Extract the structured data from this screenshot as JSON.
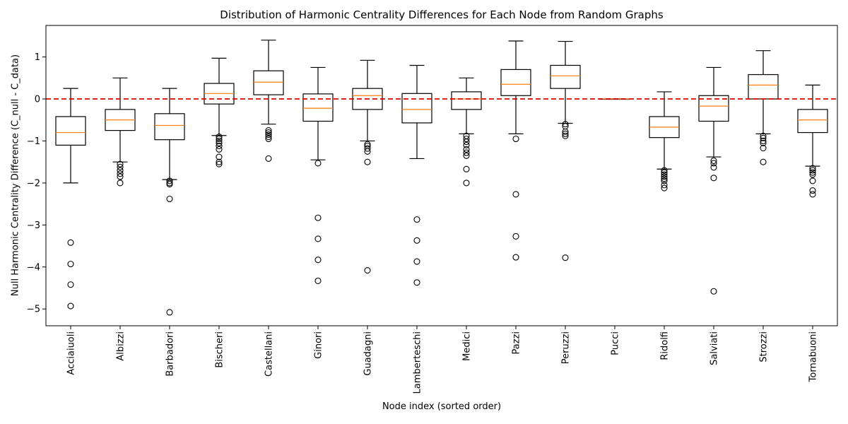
{
  "chart_data": {
    "type": "box",
    "title": "Distribution of Harmonic Centrality Differences for Each Node from Random Graphs",
    "xlabel": "Node index (sorted order)",
    "ylabel": "Null Harmonic Centrality Difference (C_null - C_data)",
    "ylim": [
      -5.4,
      1.75
    ],
    "yticks": [
      1,
      0,
      -1,
      -2,
      -3,
      -4,
      -5
    ],
    "reference_line": {
      "y": 0,
      "style": "dashed",
      "color": "#dd0000"
    },
    "colors": {
      "median": "#ff7f0e",
      "box": "#000000",
      "outlier": "#000000",
      "reference": "#dd0000"
    },
    "grid": false,
    "categories": [
      "Acciaiuoli",
      "Albizzi",
      "Barbadori",
      "Bischeri",
      "Castellani",
      "Ginori",
      "Guadagni",
      "Lamberteschi",
      "Medici",
      "Pazzi",
      "Peruzzi",
      "Pucci",
      "Ridolfi",
      "Salviati",
      "Strozzi",
      "Tornabuoni"
    ],
    "boxes": [
      {
        "name": "Acciaiuoli",
        "whislo": -2.0,
        "q1": -1.1,
        "med": -0.8,
        "q3": -0.42,
        "whishi": 0.25,
        "fliers": [
          -3.42,
          -3.93,
          -4.42,
          -4.93
        ]
      },
      {
        "name": "Albizzi",
        "whislo": -1.5,
        "q1": -0.75,
        "med": -0.5,
        "q3": -0.25,
        "whishi": 0.5,
        "fliers": [
          -1.55,
          -1.62,
          -1.7,
          -1.78,
          -1.85,
          -2.0
        ]
      },
      {
        "name": "Barbadori",
        "whislo": -1.92,
        "q1": -0.97,
        "med": -0.63,
        "q3": -0.35,
        "whishi": 0.25,
        "fliers": [
          -1.95,
          -2.0,
          -2.03,
          -2.38,
          -5.08
        ]
      },
      {
        "name": "Bischeri",
        "whislo": -0.87,
        "q1": -0.12,
        "med": 0.13,
        "q3": 0.37,
        "whishi": 0.97,
        "fliers": [
          -0.9,
          -0.95,
          -1.0,
          -1.05,
          -1.12,
          -1.2,
          -1.38,
          -1.5,
          -1.55
        ]
      },
      {
        "name": "Castellani",
        "whislo": -0.6,
        "q1": 0.1,
        "med": 0.4,
        "q3": 0.67,
        "whishi": 1.4,
        "fliers": [
          -0.75,
          -0.8,
          -0.85,
          -0.9,
          -0.95,
          -1.42
        ]
      },
      {
        "name": "Ginori",
        "whislo": -1.45,
        "q1": -0.53,
        "med": -0.22,
        "q3": 0.12,
        "whishi": 0.75,
        "fliers": [
          -1.53,
          -2.83,
          -3.33,
          -3.83,
          -4.33
        ]
      },
      {
        "name": "Guadagni",
        "whislo": -1.0,
        "q1": -0.25,
        "med": 0.08,
        "q3": 0.25,
        "whishi": 0.92,
        "fliers": [
          -1.08,
          -1.12,
          -1.18,
          -1.25,
          -1.5,
          -4.08
        ]
      },
      {
        "name": "Lamberteschi",
        "whislo": -1.42,
        "q1": -0.57,
        "med": -0.25,
        "q3": 0.13,
        "whishi": 0.8,
        "fliers": [
          -2.87,
          -3.37,
          -3.87,
          -4.37
        ]
      },
      {
        "name": "Medici",
        "whislo": -0.83,
        "q1": -0.25,
        "med": 0.0,
        "q3": 0.17,
        "whishi": 0.5,
        "fliers": [
          -0.88,
          -0.95,
          -1.02,
          -1.1,
          -1.2,
          -1.28,
          -1.35,
          -1.67,
          -2.0
        ]
      },
      {
        "name": "Pazzi",
        "whislo": -0.83,
        "q1": 0.08,
        "med": 0.35,
        "q3": 0.7,
        "whishi": 1.38,
        "fliers": [
          -0.95,
          -2.27,
          -3.27,
          -3.77
        ]
      },
      {
        "name": "Peruzzi",
        "whislo": -0.58,
        "q1": 0.25,
        "med": 0.55,
        "q3": 0.8,
        "whishi": 1.37,
        "fliers": [
          -0.6,
          -0.65,
          -0.78,
          -0.83,
          -0.88,
          -3.78
        ]
      },
      {
        "name": "Pucci",
        "whislo": 0.0,
        "q1": 0.0,
        "med": 0.0,
        "q3": 0.0,
        "whishi": 0.0,
        "fliers": []
      },
      {
        "name": "Ridolfi",
        "whislo": -1.67,
        "q1": -0.92,
        "med": -0.67,
        "q3": -0.42,
        "whishi": 0.17,
        "fliers": [
          -1.7,
          -1.75,
          -1.8,
          -1.85,
          -1.9,
          -1.95,
          -2.05,
          -2.12
        ]
      },
      {
        "name": "Salviati",
        "whislo": -1.38,
        "q1": -0.53,
        "med": -0.17,
        "q3": 0.08,
        "whishi": 0.75,
        "fliers": [
          -1.47,
          -1.53,
          -1.63,
          -1.88,
          -4.58
        ]
      },
      {
        "name": "Strozzi",
        "whislo": -0.83,
        "q1": 0.0,
        "med": 0.33,
        "q3": 0.58,
        "whishi": 1.15,
        "fliers": [
          -0.88,
          -0.93,
          -1.0,
          -1.05,
          -1.17,
          -1.5
        ]
      },
      {
        "name": "Tornabuoni",
        "whislo": -1.6,
        "q1": -0.8,
        "med": -0.5,
        "q3": -0.25,
        "whishi": 0.33,
        "fliers": [
          -1.65,
          -1.7,
          -1.75,
          -1.8,
          -1.95,
          -2.18,
          -2.27
        ]
      }
    ]
  }
}
